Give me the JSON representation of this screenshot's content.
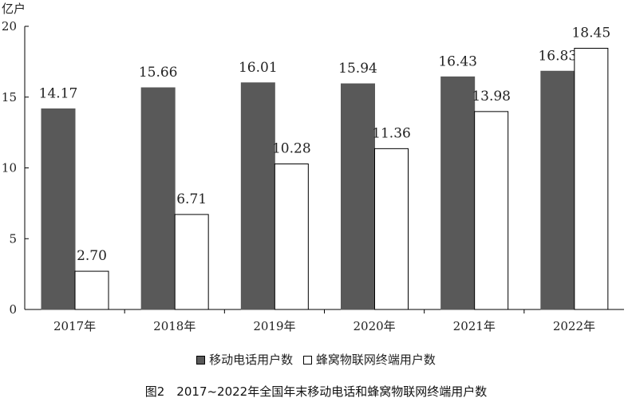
{
  "chart_data": {
    "type": "bar",
    "unit": "亿户",
    "categories": [
      "2017年",
      "2018年",
      "2019年",
      "2020年",
      "2021年",
      "2022年"
    ],
    "series": [
      {
        "name": "移动电话用户数",
        "values": [
          14.17,
          15.66,
          16.01,
          15.94,
          16.43,
          16.83
        ],
        "color": "#595959"
      },
      {
        "name": "蜂窝物联网终端用户数",
        "values": [
          2.7,
          6.71,
          10.28,
          11.36,
          13.98,
          18.45
        ],
        "color": "#ffffff"
      }
    ],
    "data_labels": [
      [
        "14.17",
        "15.66",
        "16.01",
        "15.94",
        "16.43",
        "16.83"
      ],
      [
        "2.70",
        "6.71",
        "10.28",
        "11.36",
        "13.98",
        "18.45"
      ]
    ],
    "ylim": [
      0,
      20
    ],
    "yticks": [
      0,
      5,
      10,
      15,
      20
    ],
    "grid": false,
    "legend": "bottom",
    "title": "图2　2017~2022年全国年末移动电话和蜂窝物联网终端用户数"
  }
}
